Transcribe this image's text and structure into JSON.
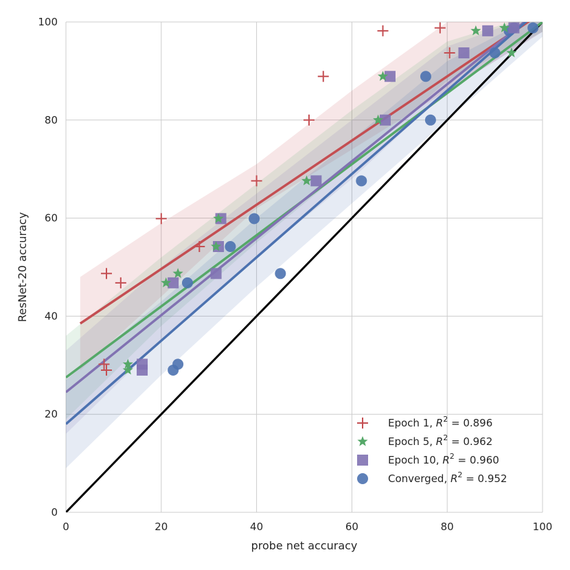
{
  "chart_data": {
    "type": "scatter",
    "title": "",
    "xlabel": "probe net accuracy",
    "ylabel": "ResNet-20 accuracy",
    "xlim": [
      0,
      100
    ],
    "ylim": [
      0,
      100
    ],
    "xticks": [
      0,
      20,
      40,
      60,
      80,
      100
    ],
    "yticks": [
      0,
      20,
      40,
      60,
      80,
      100
    ],
    "grid": true,
    "legend_position": "bottom-right",
    "identity_line": {
      "color": "#000000"
    },
    "series": [
      {
        "name": "Epoch 1, R² = 0.896",
        "legend_prefix": "Epoch 1, ",
        "r2_text": "0.896",
        "marker": "plus",
        "color": "#c44e52",
        "fit": {
          "x": [
            3,
            100
          ],
          "y": [
            38.5,
            102
          ]
        },
        "band": {
          "x": [
            3,
            20,
            40,
            60,
            80,
            100
          ],
          "upper": [
            48,
            59,
            71,
            86,
            100,
            100
          ],
          "lower": [
            29,
            44,
            62,
            74,
            86,
            98
          ]
        },
        "points": [
          [
            8.5,
            48.7
          ],
          [
            11.5,
            46.8
          ],
          [
            8,
            30.2
          ],
          [
            8.5,
            29.0
          ],
          [
            20,
            59.9
          ],
          [
            28,
            54.2
          ],
          [
            40,
            67.6
          ],
          [
            51,
            80.0
          ],
          [
            54,
            88.9
          ],
          [
            66.5,
            98.2
          ],
          [
            78.5,
            98.8
          ],
          [
            80.5,
            93.7
          ]
        ]
      },
      {
        "name": "Epoch 5, R² = 0.962",
        "legend_prefix": "Epoch 5, ",
        "r2_text": "0.962",
        "marker": "star",
        "color": "#55a868",
        "fit": {
          "x": [
            0,
            100
          ],
          "y": [
            27.5,
            100
          ]
        },
        "band": {
          "x": [
            0,
            20,
            40,
            60,
            80,
            100
          ],
          "upper": [
            36,
            52,
            67,
            82,
            96,
            102
          ],
          "lower": [
            19,
            38,
            55,
            71,
            88,
            98
          ]
        },
        "points": [
          [
            13,
            30.2
          ],
          [
            13,
            29.0
          ],
          [
            21,
            46.8
          ],
          [
            23.5,
            48.7
          ],
          [
            31.5,
            54.2
          ],
          [
            32,
            59.9
          ],
          [
            50.5,
            67.6
          ],
          [
            65.5,
            80.0
          ],
          [
            66.5,
            88.9
          ],
          [
            86,
            98.2
          ],
          [
            92,
            98.8
          ],
          [
            93.5,
            93.7
          ]
        ]
      },
      {
        "name": "Epoch 10, R² = 0.960",
        "legend_prefix": "Epoch 10, ",
        "r2_text": "0.960",
        "marker": "square",
        "color": "#8172b2",
        "fit": {
          "x": [
            0,
            100
          ],
          "y": [
            24.5,
            103
          ]
        },
        "band": {
          "x": [
            0,
            20,
            40,
            60,
            80,
            100
          ],
          "upper": [
            33,
            50,
            65,
            80,
            95,
            102
          ],
          "lower": [
            16,
            35,
            52,
            68,
            86,
            98
          ]
        },
        "points": [
          [
            16,
            30.2
          ],
          [
            16,
            29.0
          ],
          [
            22.5,
            46.8
          ],
          [
            31.5,
            48.7
          ],
          [
            32,
            54.2
          ],
          [
            32.5,
            59.9
          ],
          [
            52.5,
            67.6
          ],
          [
            67,
            80.0
          ],
          [
            68,
            88.9
          ],
          [
            83.5,
            93.7
          ],
          [
            88.5,
            98.2
          ],
          [
            94,
            98.8
          ]
        ]
      },
      {
        "name": "Converged, R² = 0.952",
        "legend_prefix": "Converged, ",
        "r2_text": "0.952",
        "marker": "circle",
        "color": "#4c72b0",
        "fit": {
          "x": [
            0,
            100
          ],
          "y": [
            18,
            103
          ]
        },
        "band": {
          "x": [
            0,
            20,
            40,
            60,
            80,
            100
          ],
          "upper": [
            27,
            43,
            60,
            76,
            92,
            102
          ],
          "lower": [
            9,
            28,
            46,
            63,
            80,
            97
          ]
        },
        "points": [
          [
            22.5,
            29.0
          ],
          [
            23.5,
            30.2
          ],
          [
            25.5,
            46.8
          ],
          [
            34.5,
            54.2
          ],
          [
            39.5,
            59.9
          ],
          [
            45,
            48.7
          ],
          [
            62,
            67.6
          ],
          [
            75.5,
            88.9
          ],
          [
            76.5,
            80.0
          ],
          [
            90,
            93.7
          ],
          [
            93,
            98.2
          ],
          [
            94,
            98.8
          ],
          [
            98,
            98.8
          ]
        ]
      }
    ]
  }
}
